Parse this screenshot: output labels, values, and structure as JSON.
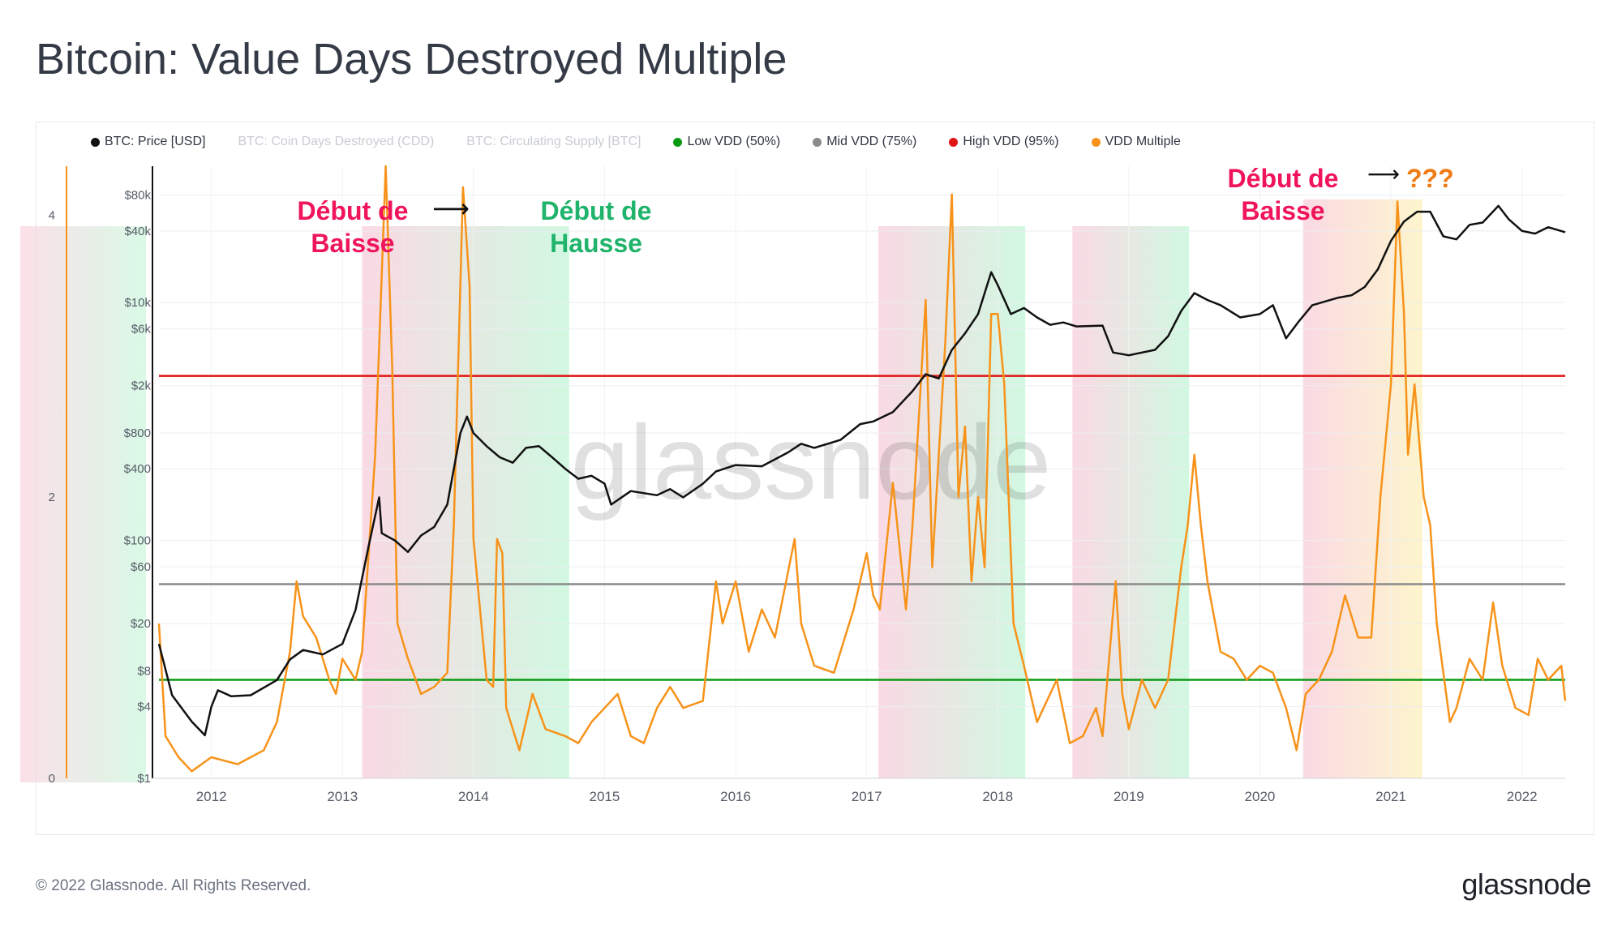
{
  "title": "Bitcoin: Value Days Destroyed Multiple",
  "footer": "© 2022 Glassnode. All Rights Reserved.",
  "brand": "glassnode",
  "watermark": "glassnode",
  "legend": [
    {
      "label": "BTC: Price [USD]",
      "color": "#111111",
      "enabled": true
    },
    {
      "label": "BTC: Coin Days Destroyed (CDD)",
      "color": "#c9ccd2",
      "enabled": false
    },
    {
      "label": "BTC: Circulating Supply [BTC]",
      "color": "#c9ccd2",
      "enabled": false
    },
    {
      "label": "Low VDD (50%)",
      "color": "#0a9a12",
      "enabled": true
    },
    {
      "label": "Mid VDD (75%)",
      "color": "#8a8a8a",
      "enabled": true
    },
    {
      "label": "High VDD (95%)",
      "color": "#e11414",
      "enabled": true
    },
    {
      "label": "VDD Multiple",
      "color": "#f7931a",
      "enabled": true
    }
  ],
  "annotations": {
    "a1": {
      "line1": "Début de",
      "line2": "Baisse"
    },
    "a2": {
      "line1": "Début de",
      "line2": "Hausse"
    },
    "a3": {
      "line1": "Début de",
      "line2": "Baisse"
    },
    "arrow1": "⟶",
    "arrow2": "⟶",
    "question": "???"
  },
  "chart_data": {
    "type": "line",
    "x_axis": {
      "ticks": [
        "2012",
        "2013",
        "2014",
        "2015",
        "2016",
        "2017",
        "2018",
        "2019",
        "2020",
        "2021",
        "2022"
      ],
      "range": [
        2011.6,
        2022.33
      ]
    },
    "y_price": {
      "scale": "log",
      "range": [
        1,
        140000
      ],
      "tick_values": [
        1,
        4,
        8,
        20,
        60,
        100,
        400,
        800,
        2000,
        6000,
        10000,
        40000,
        80000
      ],
      "tick_labels": [
        "$1",
        "$4",
        "$8",
        "$20",
        "$60",
        "$100",
        "$400",
        "$800",
        "$2k",
        "$6k",
        "$10k",
        "$40k",
        "$80k"
      ]
    },
    "y_vdd": {
      "scale": "linear",
      "range": [
        0,
        4.35
      ],
      "tick_values": [
        0,
        2,
        4
      ],
      "tick_labels": [
        "0",
        "2",
        "4"
      ]
    },
    "thresholds": [
      {
        "name": "Low VDD (50%)",
        "value": 0.7,
        "color": "#0a9a12"
      },
      {
        "name": "Mid VDD (75%)",
        "value": 1.38,
        "color": "#8a8a8a"
      },
      {
        "name": "High VDD (95%)",
        "value": 2.86,
        "color": "#e11414"
      }
    ],
    "regions": [
      {
        "start": 2013.15,
        "end": 2014.73,
        "from": "#f9d3df",
        "to": "#c9f7dc"
      },
      {
        "start": 2017.09,
        "end": 2018.21,
        "from": "#f9d3df",
        "to": "#c9f7dc"
      },
      {
        "start": 2018.57,
        "end": 2019.46,
        "from": "#f9d3df",
        "to": "#c9f7dc"
      },
      {
        "start": 2020.33,
        "end": 2021.24,
        "from": "#f9d3df",
        "to": "#fdf3c4"
      }
    ],
    "series": [
      {
        "name": "BTC: Price [USD]",
        "color": "#111111",
        "axis": "price",
        "points": [
          [
            2011.6,
            13.5
          ],
          [
            2011.7,
            5
          ],
          [
            2011.85,
            3
          ],
          [
            2011.95,
            2.3
          ],
          [
            2012.0,
            4
          ],
          [
            2012.05,
            5.5
          ],
          [
            2012.15,
            4.9
          ],
          [
            2012.3,
            5
          ],
          [
            2012.5,
            6.7
          ],
          [
            2012.6,
            10
          ],
          [
            2012.7,
            12
          ],
          [
            2012.85,
            11
          ],
          [
            2013.0,
            13.5
          ],
          [
            2013.1,
            26
          ],
          [
            2013.2,
            90
          ],
          [
            2013.28,
            230
          ],
          [
            2013.3,
            115
          ],
          [
            2013.4,
            100
          ],
          [
            2013.5,
            80
          ],
          [
            2013.6,
            110
          ],
          [
            2013.7,
            130
          ],
          [
            2013.8,
            200
          ],
          [
            2013.9,
            800
          ],
          [
            2013.95,
            1100
          ],
          [
            2014.0,
            800
          ],
          [
            2014.1,
            620
          ],
          [
            2014.2,
            500
          ],
          [
            2014.3,
            450
          ],
          [
            2014.4,
            600
          ],
          [
            2014.5,
            620
          ],
          [
            2014.6,
            500
          ],
          [
            2014.7,
            400
          ],
          [
            2014.8,
            330
          ],
          [
            2014.9,
            350
          ],
          [
            2015.0,
            300
          ],
          [
            2015.05,
            200
          ],
          [
            2015.2,
            260
          ],
          [
            2015.4,
            240
          ],
          [
            2015.5,
            270
          ],
          [
            2015.6,
            230
          ],
          [
            2015.75,
            300
          ],
          [
            2015.85,
            380
          ],
          [
            2016.0,
            430
          ],
          [
            2016.2,
            420
          ],
          [
            2016.4,
            550
          ],
          [
            2016.5,
            650
          ],
          [
            2016.6,
            600
          ],
          [
            2016.8,
            700
          ],
          [
            2016.95,
            950
          ],
          [
            2017.05,
            1000
          ],
          [
            2017.2,
            1200
          ],
          [
            2017.35,
            1800
          ],
          [
            2017.45,
            2500
          ],
          [
            2017.55,
            2300
          ],
          [
            2017.65,
            4000
          ],
          [
            2017.75,
            5500
          ],
          [
            2017.85,
            8000
          ],
          [
            2017.95,
            18000
          ],
          [
            2018.0,
            14000
          ],
          [
            2018.1,
            8000
          ],
          [
            2018.2,
            9000
          ],
          [
            2018.3,
            7500
          ],
          [
            2018.4,
            6500
          ],
          [
            2018.5,
            6800
          ],
          [
            2018.6,
            6300
          ],
          [
            2018.8,
            6400
          ],
          [
            2018.88,
            3800
          ],
          [
            2019.0,
            3600
          ],
          [
            2019.2,
            4000
          ],
          [
            2019.3,
            5200
          ],
          [
            2019.4,
            8500
          ],
          [
            2019.5,
            12000
          ],
          [
            2019.6,
            10500
          ],
          [
            2019.7,
            9500
          ],
          [
            2019.85,
            7500
          ],
          [
            2020.0,
            8000
          ],
          [
            2020.1,
            9500
          ],
          [
            2020.2,
            5000
          ],
          [
            2020.3,
            7000
          ],
          [
            2020.4,
            9500
          ],
          [
            2020.6,
            11000
          ],
          [
            2020.7,
            11500
          ],
          [
            2020.8,
            13500
          ],
          [
            2020.9,
            19000
          ],
          [
            2021.0,
            33000
          ],
          [
            2021.1,
            48000
          ],
          [
            2021.2,
            58000
          ],
          [
            2021.3,
            58000
          ],
          [
            2021.4,
            36000
          ],
          [
            2021.5,
            34000
          ],
          [
            2021.6,
            45000
          ],
          [
            2021.7,
            47000
          ],
          [
            2021.82,
            65000
          ],
          [
            2021.9,
            50000
          ],
          [
            2022.0,
            40000
          ],
          [
            2022.1,
            38000
          ],
          [
            2022.2,
            43000
          ],
          [
            2022.33,
            39000
          ]
        ]
      },
      {
        "name": "VDD Multiple",
        "color": "#f7931a",
        "axis": "vdd",
        "points": [
          [
            2011.6,
            1.1
          ],
          [
            2011.65,
            0.3
          ],
          [
            2011.75,
            0.15
          ],
          [
            2011.85,
            0.05
          ],
          [
            2012.0,
            0.15
          ],
          [
            2012.2,
            0.1
          ],
          [
            2012.4,
            0.2
          ],
          [
            2012.5,
            0.4
          ],
          [
            2012.6,
            0.9
          ],
          [
            2012.65,
            1.4
          ],
          [
            2012.7,
            1.15
          ],
          [
            2012.8,
            1.0
          ],
          [
            2012.9,
            0.7
          ],
          [
            2012.95,
            0.6
          ],
          [
            2013.0,
            0.85
          ],
          [
            2013.1,
            0.7
          ],
          [
            2013.15,
            0.9
          ],
          [
            2013.25,
            2.3
          ],
          [
            2013.33,
            4.35
          ],
          [
            2013.38,
            2.9
          ],
          [
            2013.42,
            1.1
          ],
          [
            2013.5,
            0.85
          ],
          [
            2013.6,
            0.6
          ],
          [
            2013.7,
            0.65
          ],
          [
            2013.8,
            0.75
          ],
          [
            2013.85,
            1.8
          ],
          [
            2013.92,
            4.2
          ],
          [
            2013.97,
            3.5
          ],
          [
            2014.0,
            1.7
          ],
          [
            2014.1,
            0.7
          ],
          [
            2014.15,
            0.65
          ],
          [
            2014.18,
            1.7
          ],
          [
            2014.22,
            1.6
          ],
          [
            2014.25,
            0.5
          ],
          [
            2014.35,
            0.2
          ],
          [
            2014.45,
            0.6
          ],
          [
            2014.55,
            0.35
          ],
          [
            2014.7,
            0.3
          ],
          [
            2014.8,
            0.25
          ],
          [
            2014.9,
            0.4
          ],
          [
            2015.0,
            0.5
          ],
          [
            2015.1,
            0.6
          ],
          [
            2015.2,
            0.3
          ],
          [
            2015.3,
            0.25
          ],
          [
            2015.4,
            0.5
          ],
          [
            2015.5,
            0.65
          ],
          [
            2015.6,
            0.5
          ],
          [
            2015.75,
            0.55
          ],
          [
            2015.85,
            1.4
          ],
          [
            2015.9,
            1.1
          ],
          [
            2016.0,
            1.4
          ],
          [
            2016.1,
            0.9
          ],
          [
            2016.2,
            1.2
          ],
          [
            2016.3,
            1.0
          ],
          [
            2016.45,
            1.7
          ],
          [
            2016.5,
            1.1
          ],
          [
            2016.6,
            0.8
          ],
          [
            2016.75,
            0.75
          ],
          [
            2016.9,
            1.2
          ],
          [
            2017.0,
            1.6
          ],
          [
            2017.05,
            1.3
          ],
          [
            2017.1,
            1.2
          ],
          [
            2017.2,
            2.1
          ],
          [
            2017.3,
            1.2
          ],
          [
            2017.35,
            1.8
          ],
          [
            2017.45,
            3.4
          ],
          [
            2017.5,
            1.5
          ],
          [
            2017.6,
            3.1
          ],
          [
            2017.65,
            4.15
          ],
          [
            2017.7,
            2.0
          ],
          [
            2017.75,
            2.5
          ],
          [
            2017.8,
            1.4
          ],
          [
            2017.85,
            2.0
          ],
          [
            2017.9,
            1.5
          ],
          [
            2017.95,
            3.3
          ],
          [
            2018.0,
            3.3
          ],
          [
            2018.05,
            2.8
          ],
          [
            2018.12,
            1.1
          ],
          [
            2018.2,
            0.8
          ],
          [
            2018.3,
            0.4
          ],
          [
            2018.35,
            0.5
          ],
          [
            2018.45,
            0.7
          ],
          [
            2018.55,
            0.25
          ],
          [
            2018.65,
            0.3
          ],
          [
            2018.75,
            0.5
          ],
          [
            2018.8,
            0.3
          ],
          [
            2018.9,
            1.4
          ],
          [
            2018.95,
            0.6
          ],
          [
            2019.0,
            0.35
          ],
          [
            2019.1,
            0.7
          ],
          [
            2019.2,
            0.5
          ],
          [
            2019.3,
            0.7
          ],
          [
            2019.4,
            1.5
          ],
          [
            2019.45,
            1.8
          ],
          [
            2019.5,
            2.3
          ],
          [
            2019.55,
            1.8
          ],
          [
            2019.6,
            1.4
          ],
          [
            2019.7,
            0.9
          ],
          [
            2019.8,
            0.85
          ],
          [
            2019.9,
            0.7
          ],
          [
            2020.0,
            0.8
          ],
          [
            2020.1,
            0.75
          ],
          [
            2020.2,
            0.5
          ],
          [
            2020.28,
            0.2
          ],
          [
            2020.35,
            0.6
          ],
          [
            2020.45,
            0.7
          ],
          [
            2020.55,
            0.9
          ],
          [
            2020.65,
            1.3
          ],
          [
            2020.75,
            1.0
          ],
          [
            2020.85,
            1.0
          ],
          [
            2020.92,
            2.0
          ],
          [
            2021.0,
            2.8
          ],
          [
            2021.05,
            4.1
          ],
          [
            2021.1,
            3.3
          ],
          [
            2021.13,
            2.3
          ],
          [
            2021.18,
            2.8
          ],
          [
            2021.25,
            2.0
          ],
          [
            2021.3,
            1.8
          ],
          [
            2021.35,
            1.1
          ],
          [
            2021.45,
            0.4
          ],
          [
            2021.5,
            0.5
          ],
          [
            2021.6,
            0.85
          ],
          [
            2021.7,
            0.7
          ],
          [
            2021.78,
            1.25
          ],
          [
            2021.85,
            0.8
          ],
          [
            2021.95,
            0.5
          ],
          [
            2022.05,
            0.45
          ],
          [
            2022.12,
            0.85
          ],
          [
            2022.2,
            0.7
          ],
          [
            2022.3,
            0.8
          ],
          [
            2022.33,
            0.55
          ]
        ]
      }
    ],
    "grid": true
  }
}
